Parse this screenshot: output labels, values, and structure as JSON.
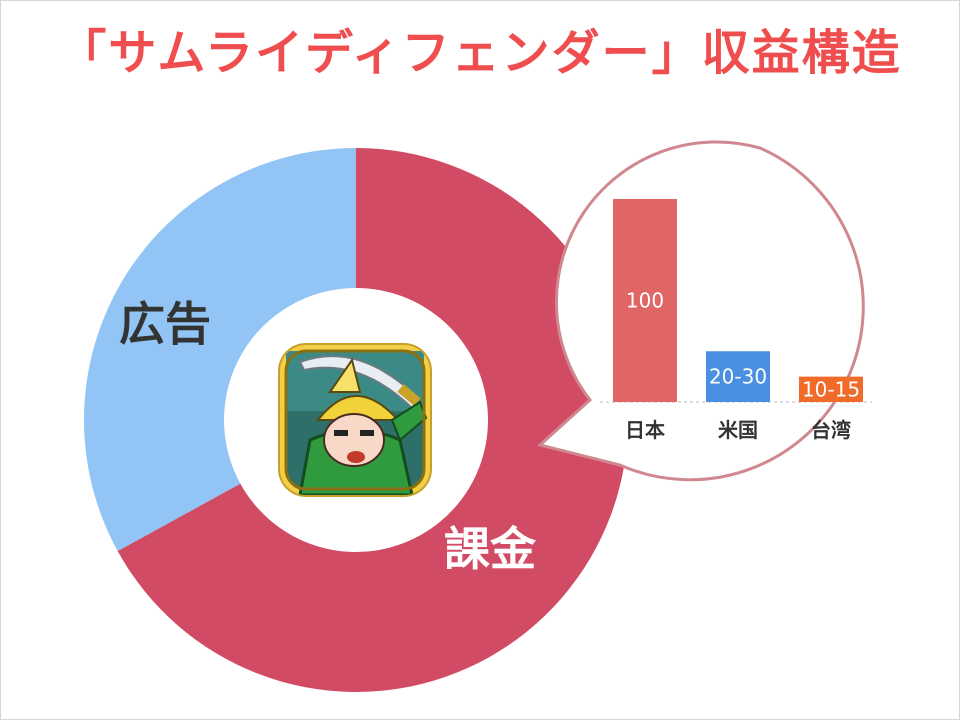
{
  "title": "「サムライディフェンダー」収益構造",
  "chart_data": [
    {
      "type": "pie",
      "style": "donut",
      "slices": [
        {
          "label": "課金",
          "value": 67,
          "color": "#d14b64",
          "label_color": "#ffffff"
        },
        {
          "label": "広告",
          "value": 33,
          "color": "#92c5f5",
          "label_color": "#333333"
        }
      ]
    },
    {
      "type": "bar",
      "categories": [
        "日本",
        "米国",
        "台湾"
      ],
      "values": [
        100,
        25,
        12.5
      ],
      "value_labels": [
        "100",
        "20-30",
        "10-15"
      ],
      "colors": [
        "#e06666",
        "#4a90e2",
        "#f06a2a"
      ],
      "ylim": [
        0,
        100
      ]
    }
  ],
  "app_icon": {
    "name": "samurai-defender-app-icon"
  }
}
